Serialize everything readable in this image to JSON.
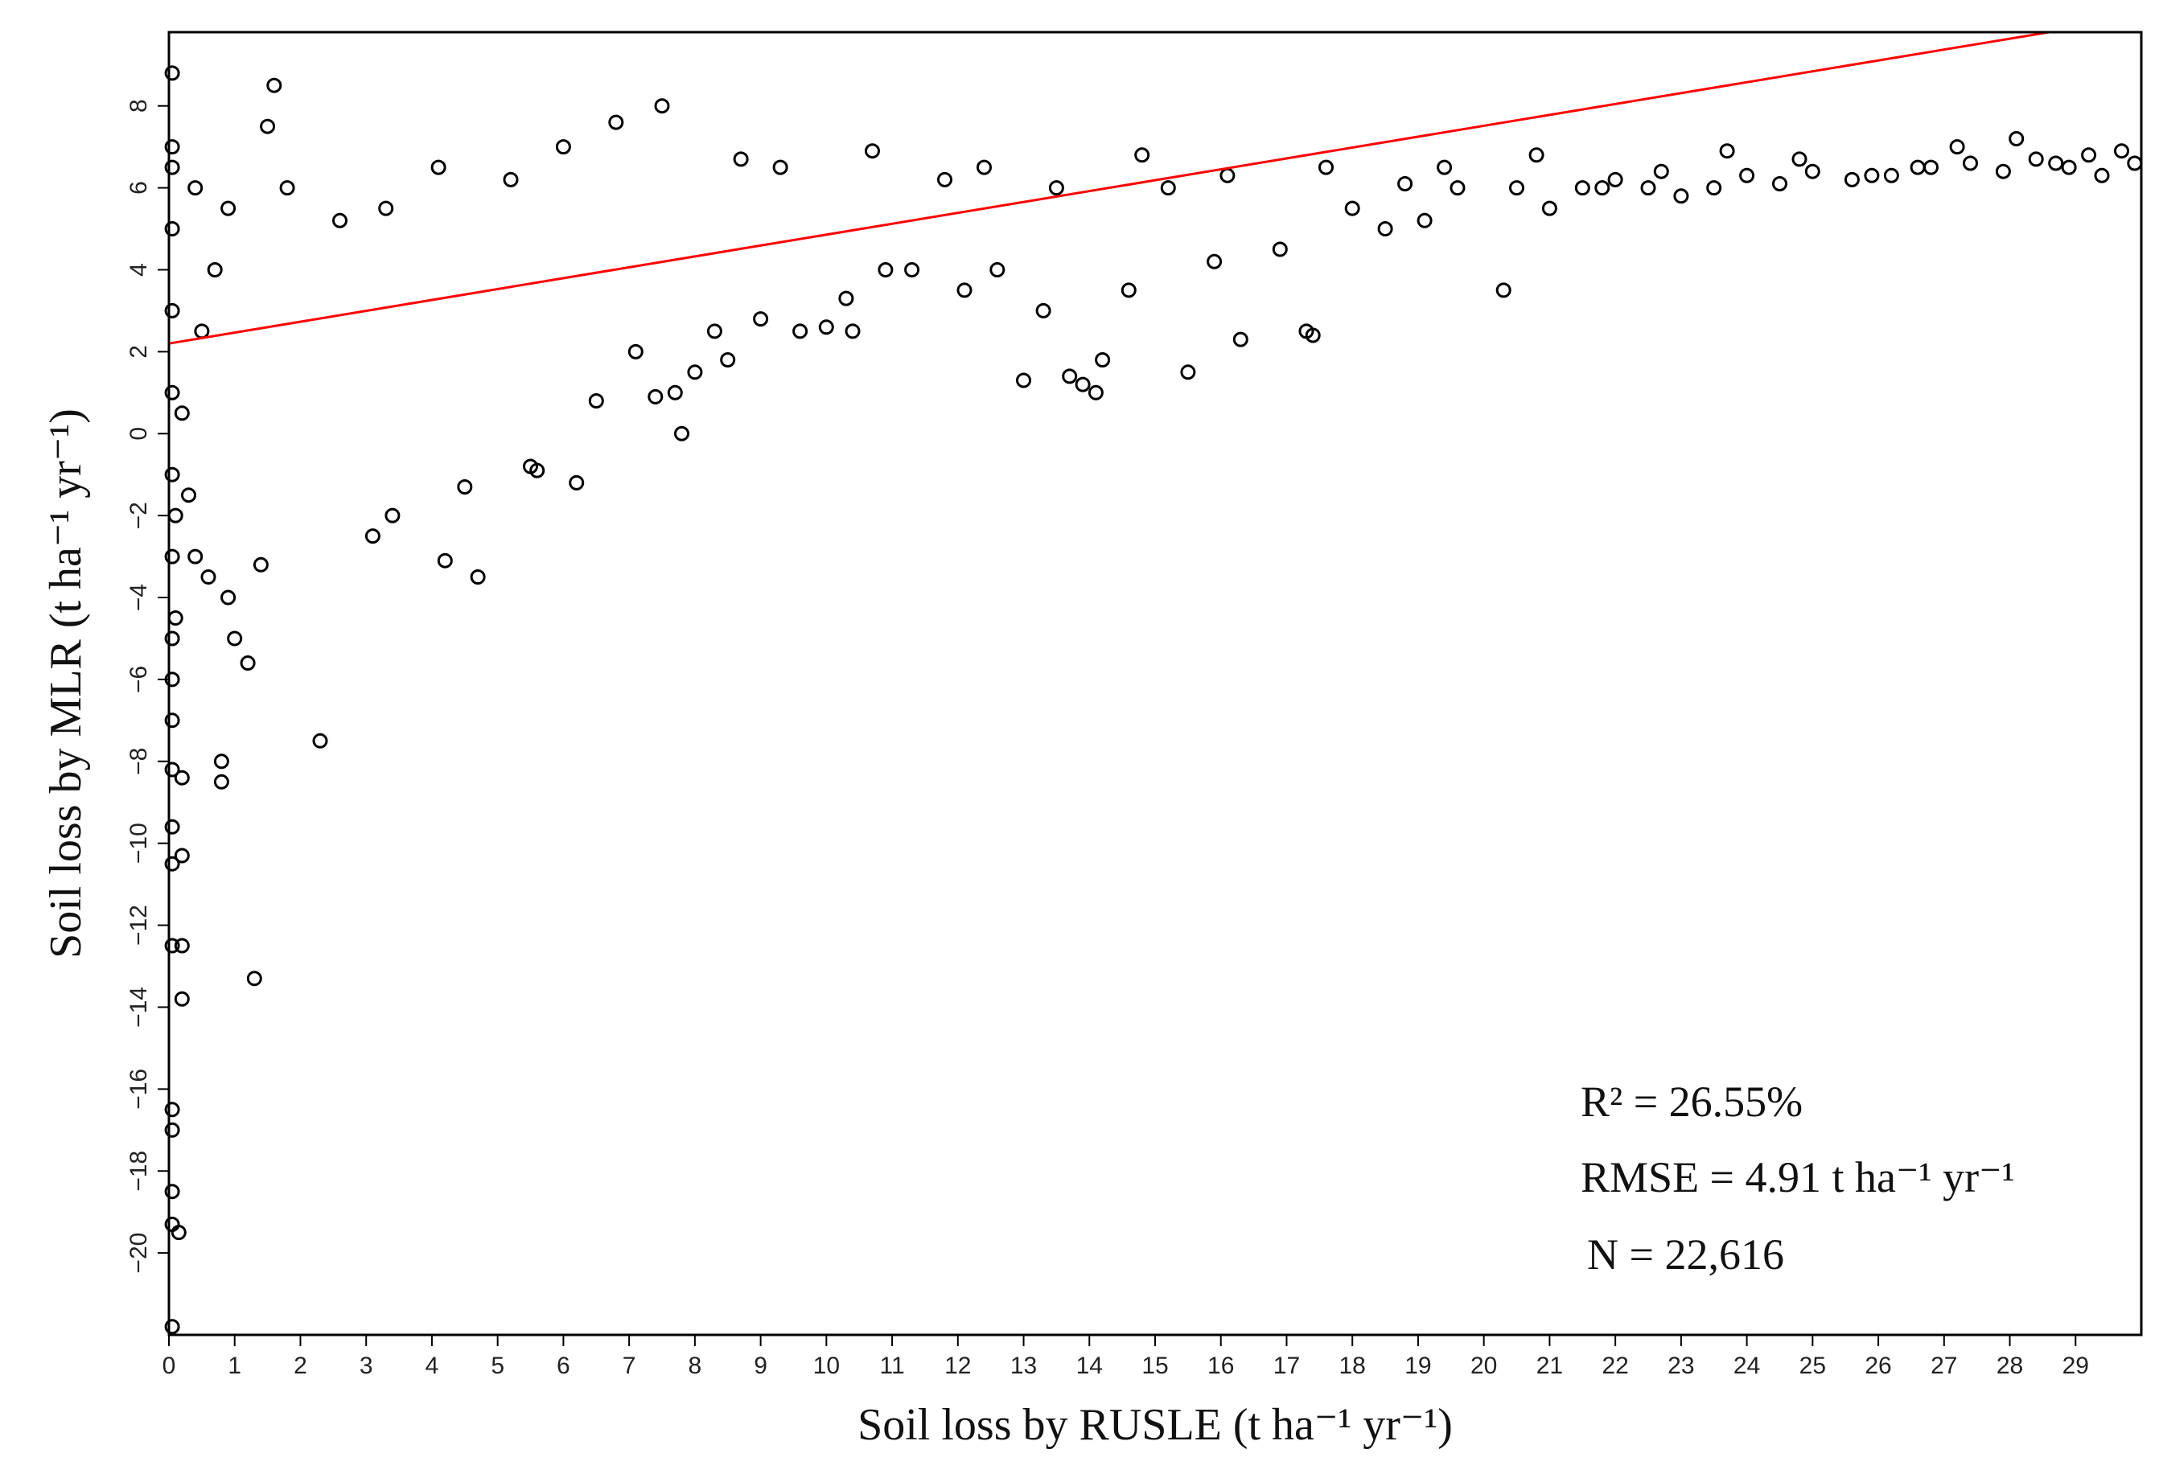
{
  "chart_data": {
    "type": "scatter",
    "title": "",
    "xlabel": "Soil loss by RUSLE (t ha⁻¹ yr⁻¹)",
    "ylabel": "Soil loss by MLR (t ha⁻¹ yr⁻¹)",
    "xlim": [
      0,
      30
    ],
    "ylim": [
      -22,
      9.8
    ],
    "x_ticks": [
      0,
      1,
      2,
      3,
      4,
      5,
      6,
      7,
      8,
      9,
      10,
      11,
      12,
      13,
      14,
      15,
      16,
      17,
      18,
      19,
      20,
      21,
      22,
      23,
      24,
      25,
      26,
      27,
      28,
      29
    ],
    "y_ticks": [
      -20,
      -18,
      -16,
      -14,
      -12,
      -10,
      -8,
      -6,
      -4,
      -2,
      0,
      2,
      4,
      6,
      8
    ],
    "grid": false,
    "marker": "open-circle",
    "marker_color": "#000000",
    "fit_line": {
      "color": "#ff0000",
      "x": [
        0,
        28.6
      ],
      "y": [
        2.2,
        9.8
      ]
    },
    "annotations": [
      "R² = 26.55%",
      "RMSE = 4.91 t ha⁻¹ yr⁻¹",
      "N = 22,616"
    ],
    "series": [
      {
        "x": [
          0.05,
          0.05,
          0.05,
          0.05,
          0.05,
          0.05,
          0.05,
          0.05,
          0.05,
          0.05,
          0.05,
          0.05,
          0.05,
          0.05,
          0.05,
          0.05,
          0.05,
          0.05,
          0.05,
          0.05,
          0.1,
          0.1,
          0.15,
          0.2,
          0.2,
          0.2,
          0.2,
          1.3,
          0.8,
          0.8,
          2.3,
          1.0,
          1.2,
          0.6,
          0.9,
          0.4,
          0.3,
          0.2,
          0.5,
          0.7,
          1.4,
          1.6,
          1.5,
          3.1,
          3.4,
          4.2,
          4.7,
          4.5,
          5.5,
          5.6,
          6.2,
          6.5,
          7.1,
          7.4,
          7.7,
          7.8,
          8.0,
          8.3,
          8.5,
          9.0,
          9.6,
          10.0,
          10.3,
          10.4,
          10.9,
          11.3,
          12.1,
          12.6,
          13.0,
          13.3,
          13.7,
          13.9,
          14.1,
          14.2,
          14.6,
          15.5,
          15.9,
          16.3,
          16.9,
          17.3,
          17.4,
          18.0,
          18.5,
          19.1,
          19.6,
          20.3,
          20.5,
          21.0,
          21.5,
          22.0,
          22.5,
          23.0,
          23.5,
          24.0,
          24.5,
          25.0,
          25.6,
          26.2,
          26.8,
          27.4,
          27.9,
          28.4,
          28.9,
          29.4,
          29.9,
          0.4,
          0.9,
          1.8,
          2.6,
          3.3,
          4.1,
          5.2,
          6.0,
          6.8,
          7.5,
          8.7,
          9.3,
          10.7,
          11.8,
          12.4,
          13.5,
          14.8,
          15.2,
          16.1,
          17.6,
          18.8,
          19.4,
          20.8,
          21.8,
          22.7,
          23.7,
          24.8,
          25.9,
          26.6,
          27.2,
          28.1,
          28.7,
          29.2,
          29.7
        ],
        "y": [
          8.8,
          7.0,
          5.0,
          3.0,
          1.0,
          -1.0,
          -3.0,
          -5.0,
          -7.0,
          -8.2,
          -9.6,
          -10.5,
          -12.5,
          -16.5,
          -17.0,
          -18.5,
          -19.3,
          -21.8,
          6.5,
          -6.0,
          -2.0,
          -4.5,
          -19.5,
          -13.8,
          -10.3,
          -12.5,
          -8.4,
          -13.3,
          -8.0,
          -8.5,
          -7.5,
          -5.0,
          -5.6,
          -3.5,
          -4.0,
          -3.0,
          -1.5,
          0.5,
          2.5,
          4.0,
          -3.2,
          8.5,
          7.5,
          -2.5,
          -2.0,
          -3.1,
          -3.5,
          -1.3,
          -0.8,
          -0.9,
          -1.2,
          0.8,
          2.0,
          0.9,
          1.0,
          0.0,
          1.5,
          2.5,
          1.8,
          2.8,
          2.5,
          2.6,
          3.3,
          2.5,
          4.0,
          4.0,
          3.5,
          4.0,
          1.3,
          3.0,
          1.4,
          1.2,
          1.0,
          1.8,
          3.5,
          1.5,
          4.2,
          2.3,
          4.5,
          2.5,
          2.4,
          5.5,
          5.0,
          5.2,
          6.0,
          3.5,
          6.0,
          5.5,
          6.0,
          6.2,
          6.0,
          5.8,
          6.0,
          6.3,
          6.1,
          6.4,
          6.2,
          6.3,
          6.5,
          6.6,
          6.4,
          6.7,
          6.5,
          6.3,
          6.6,
          6.0,
          5.5,
          6.0,
          5.2,
          5.5,
          6.5,
          6.2,
          7.0,
          7.6,
          8.0,
          6.7,
          6.5,
          6.9,
          6.2,
          6.5,
          6.0,
          6.8,
          6.0,
          6.3,
          6.5,
          6.1,
          6.5,
          6.8,
          6.0,
          6.4,
          6.9,
          6.7,
          6.3,
          6.5,
          7.0,
          7.2,
          6.6,
          6.8,
          6.9
        ]
      }
    ]
  }
}
